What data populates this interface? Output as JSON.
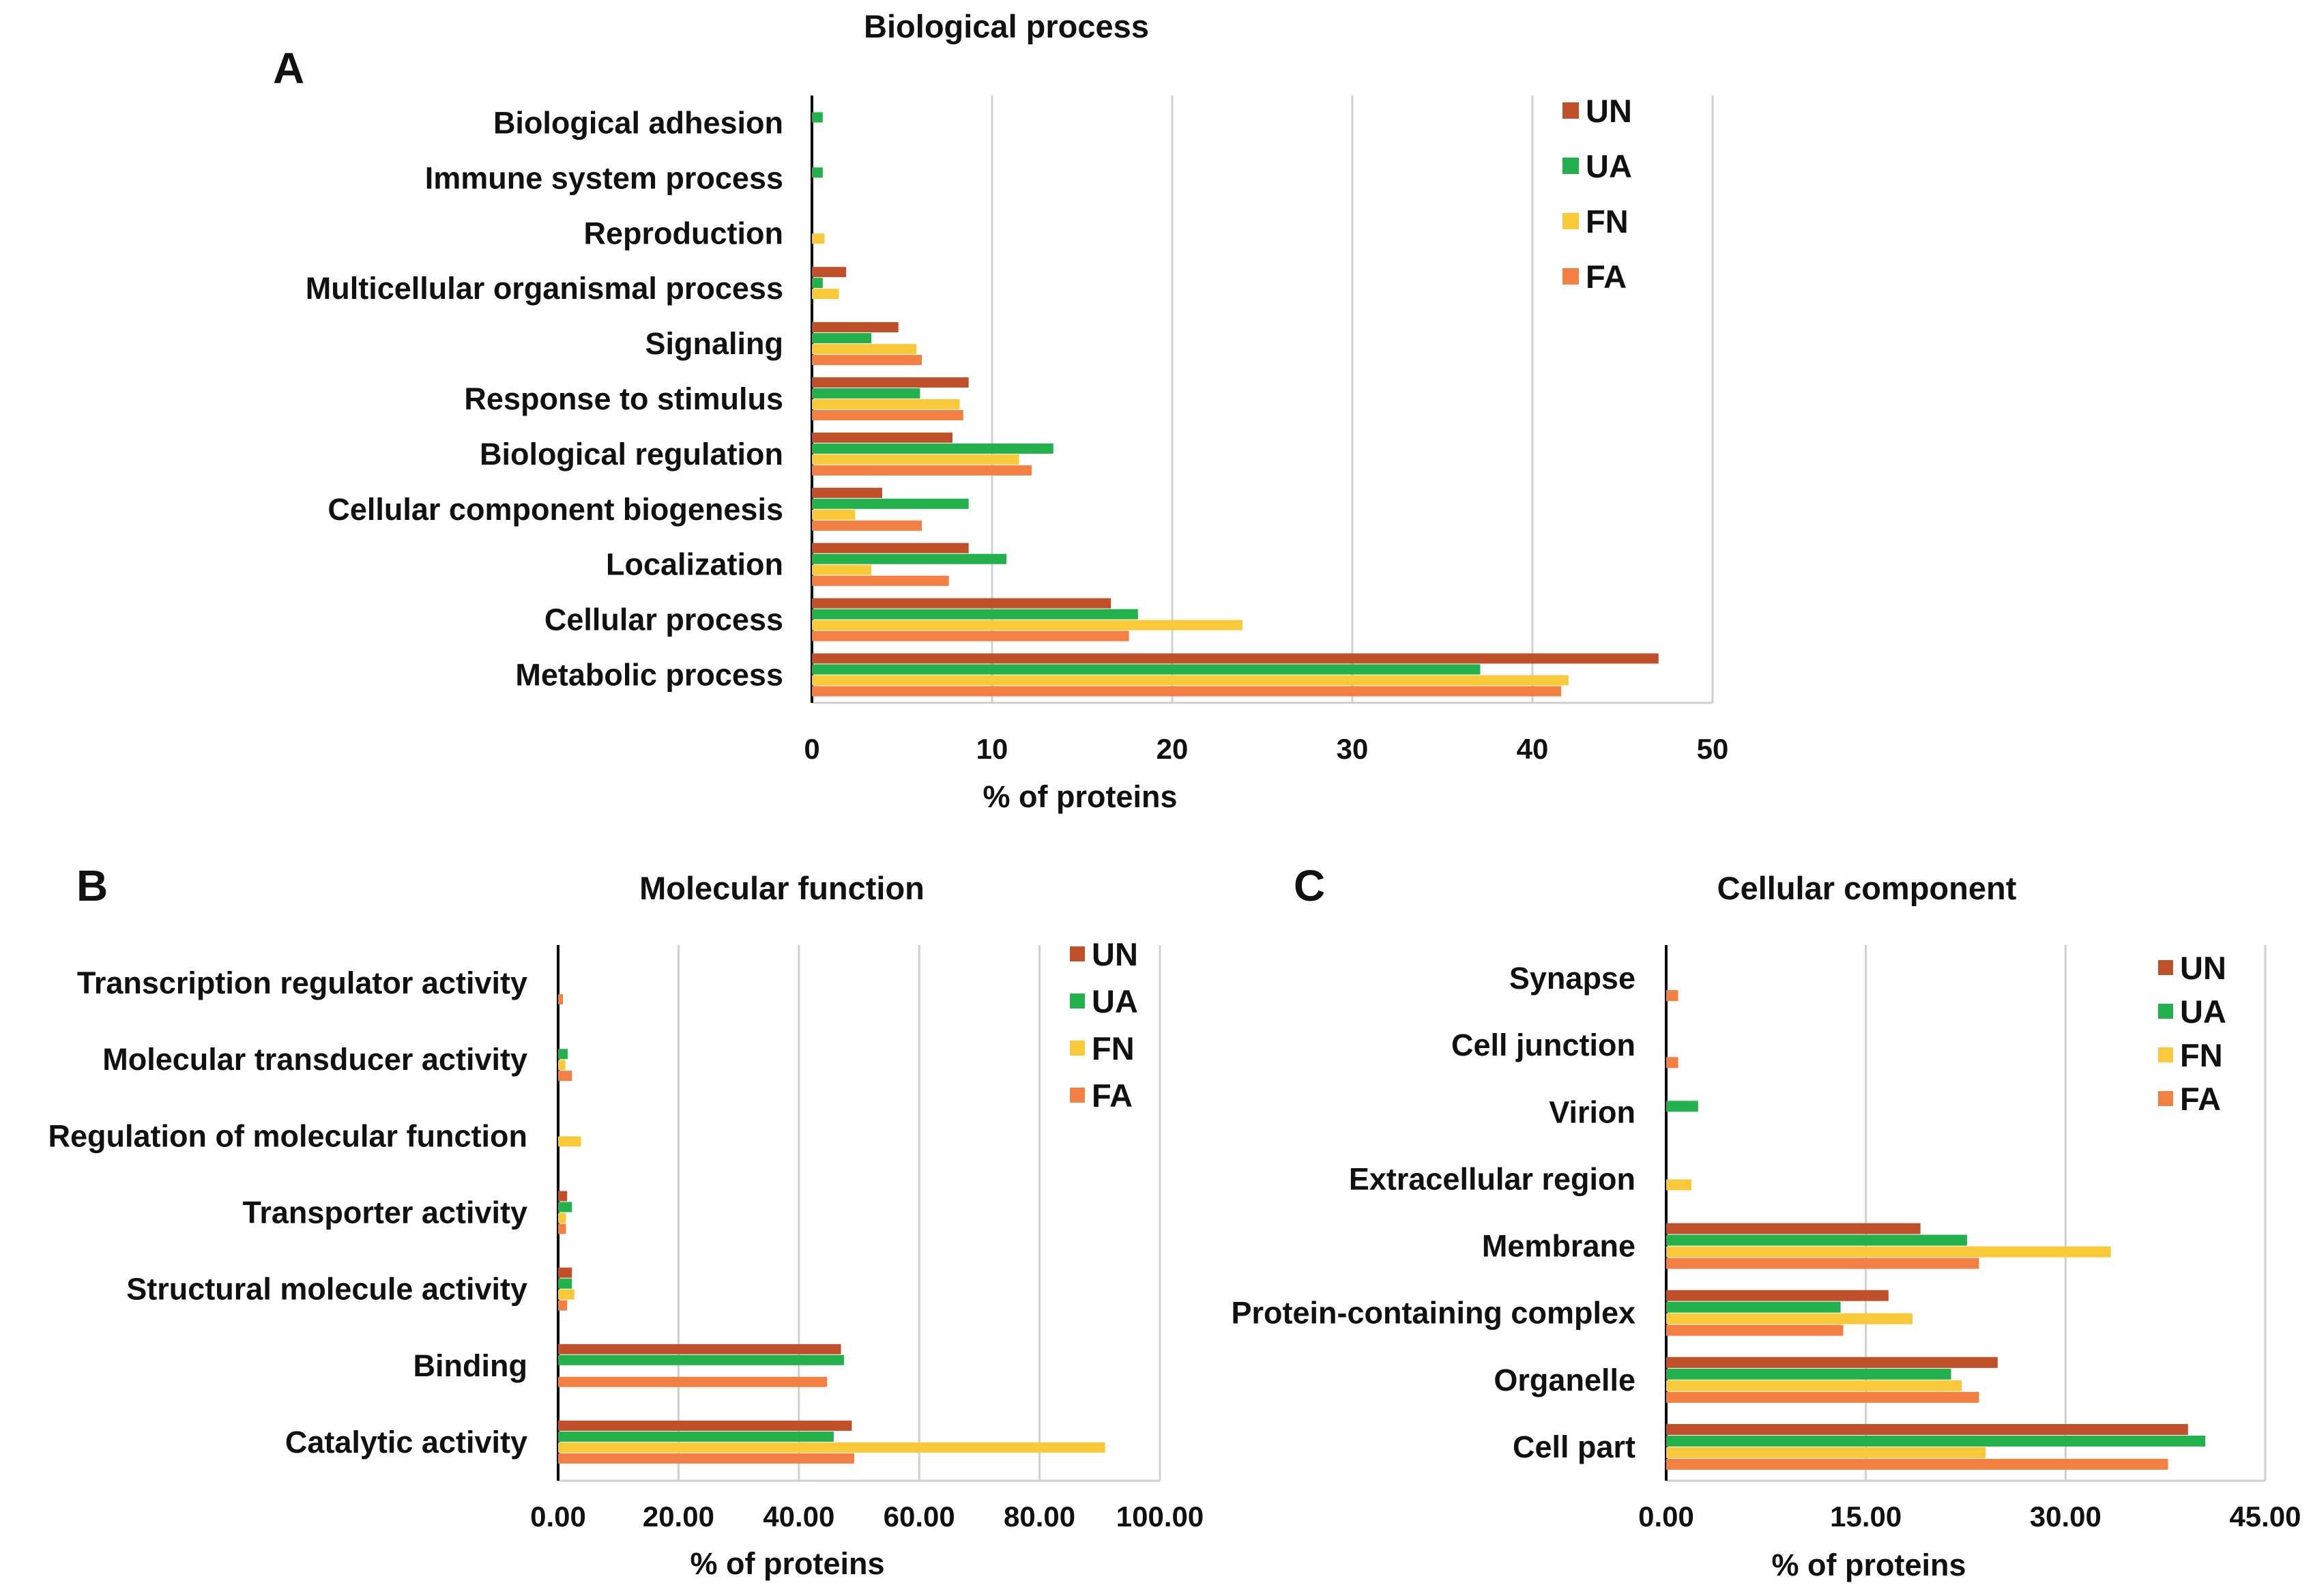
{
  "series_colors": {
    "UN": "#c0502a",
    "UA": "#22b14c",
    "FN": "#f9c93a",
    "FA": "#f47f43"
  },
  "chart_data": [
    {
      "id": "A",
      "panel_letter": "A",
      "type": "bar",
      "orientation": "horizontal",
      "title": "Biological process",
      "xlabel": "% of proteins",
      "ylabel": "",
      "xlim": [
        0,
        50
      ],
      "ticks": [
        0,
        10,
        20,
        30,
        40,
        50
      ],
      "tick_labels": [
        "0",
        "10",
        "20",
        "30",
        "40",
        "50"
      ],
      "grid": true,
      "legend_position": "top-right",
      "categories": [
        "Biological adhesion",
        "Immune system process",
        "Reproduction",
        "Multicellular organismal process",
        "Signaling",
        "Response to stimulus",
        "Biological regulation",
        "Cellular component biogenesis",
        "Localization",
        "Cellular process",
        "Metabolic process"
      ],
      "series": [
        {
          "name": "UN",
          "values": [
            0,
            0,
            0,
            1.9,
            4.8,
            8.7,
            7.8,
            3.9,
            8.7,
            16.6,
            47.0
          ]
        },
        {
          "name": "UA",
          "values": [
            0.6,
            0.6,
            0,
            0.6,
            3.3,
            6.0,
            13.4,
            8.7,
            10.8,
            18.1,
            37.1
          ]
        },
        {
          "name": "FN",
          "values": [
            0,
            0,
            0.7,
            1.5,
            5.8,
            8.2,
            11.5,
            2.4,
            3.3,
            23.9,
            42.0
          ]
        },
        {
          "name": "FA",
          "values": [
            0,
            0,
            0,
            0,
            6.1,
            8.4,
            12.2,
            6.1,
            7.6,
            17.6,
            41.6
          ]
        }
      ]
    },
    {
      "id": "B",
      "panel_letter": "B",
      "type": "bar",
      "orientation": "horizontal",
      "title": "Molecular function",
      "xlabel": "% of proteins",
      "ylabel": "",
      "xlim": [
        0,
        100
      ],
      "ticks": [
        0,
        20,
        40,
        60,
        80,
        100
      ],
      "tick_labels": [
        "0.00",
        "20.00",
        "40.00",
        "60.00",
        "80.00",
        "100.00"
      ],
      "grid": true,
      "legend_position": "top-right",
      "categories": [
        "Transcription regulator activity",
        "Molecular transducer activity",
        "Regulation of molecular function",
        "Transporter activity",
        "Structural molecule activity",
        "Binding",
        "Catalytic activity"
      ],
      "series": [
        {
          "name": "UN",
          "values": [
            0,
            0,
            0,
            1.5,
            2.3,
            47.0,
            48.8
          ]
        },
        {
          "name": "UA",
          "values": [
            0,
            1.6,
            0,
            2.3,
            2.3,
            47.5,
            45.8
          ]
        },
        {
          "name": "FN",
          "values": [
            0,
            1.2,
            3.8,
            1.3,
            2.7,
            0,
            90.9
          ]
        },
        {
          "name": "FA",
          "values": [
            0.8,
            2.3,
            0,
            1.3,
            1.5,
            44.7,
            49.2
          ]
        }
      ]
    },
    {
      "id": "C",
      "panel_letter": "C",
      "type": "bar",
      "orientation": "horizontal",
      "title": "Cellular component",
      "xlabel": "% of proteins",
      "ylabel": "",
      "xlim": [
        0,
        45
      ],
      "ticks": [
        0,
        15,
        30,
        45
      ],
      "tick_labels": [
        "0.00",
        "15.00",
        "30.00",
        "45.00"
      ],
      "grid": true,
      "legend_position": "top-right",
      "categories": [
        "Synapse",
        "Cell junction",
        "Virion",
        "Extracellular region",
        "Membrane",
        "Protein-containing complex",
        "Organelle",
        "Cell part"
      ],
      "series": [
        {
          "name": "UN",
          "values": [
            0,
            0,
            0,
            0,
            19.1,
            16.7,
            24.9,
            39.2
          ]
        },
        {
          "name": "UA",
          "values": [
            0,
            0,
            2.4,
            0,
            22.6,
            13.1,
            21.4,
            40.5
          ]
        },
        {
          "name": "FN",
          "values": [
            0,
            0,
            0,
            1.9,
            33.4,
            18.5,
            22.2,
            24.0
          ]
        },
        {
          "name": "FA",
          "values": [
            0.9,
            0.9,
            0,
            0,
            23.5,
            13.3,
            23.5,
            37.7
          ]
        }
      ]
    }
  ]
}
